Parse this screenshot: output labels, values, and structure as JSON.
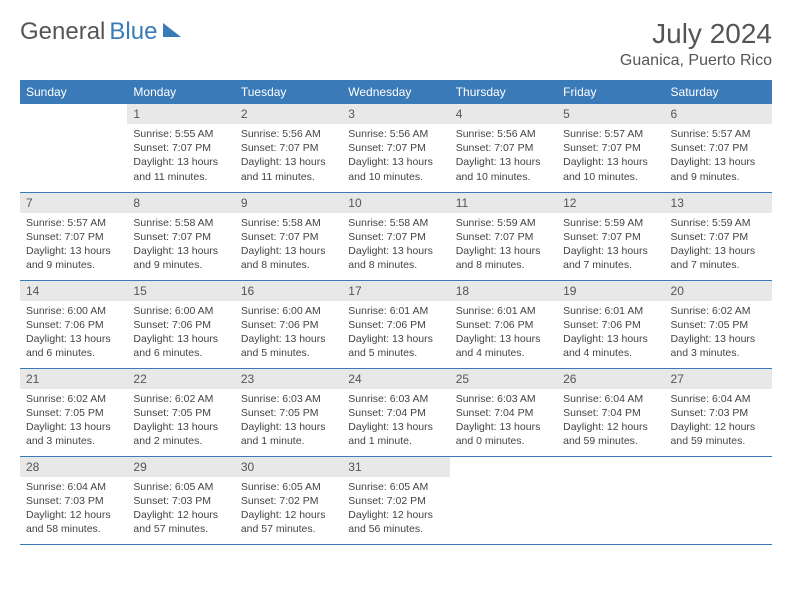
{
  "logo": {
    "part1": "General",
    "part2": "Blue"
  },
  "title": "July 2024",
  "location": "Guanica, Puerto Rico",
  "colors": {
    "header_bg": "#3a7ab8",
    "header_text": "#ffffff",
    "daynum_bg": "#e8e8e8",
    "text": "#444444",
    "border": "#3a7ab8"
  },
  "dayNames": [
    "Sunday",
    "Monday",
    "Tuesday",
    "Wednesday",
    "Thursday",
    "Friday",
    "Saturday"
  ],
  "weeks": [
    [
      null,
      {
        "n": "1",
        "sr": "5:55 AM",
        "ss": "7:07 PM",
        "dl": "13 hours and 11 minutes."
      },
      {
        "n": "2",
        "sr": "5:56 AM",
        "ss": "7:07 PM",
        "dl": "13 hours and 11 minutes."
      },
      {
        "n": "3",
        "sr": "5:56 AM",
        "ss": "7:07 PM",
        "dl": "13 hours and 10 minutes."
      },
      {
        "n": "4",
        "sr": "5:56 AM",
        "ss": "7:07 PM",
        "dl": "13 hours and 10 minutes."
      },
      {
        "n": "5",
        "sr": "5:57 AM",
        "ss": "7:07 PM",
        "dl": "13 hours and 10 minutes."
      },
      {
        "n": "6",
        "sr": "5:57 AM",
        "ss": "7:07 PM",
        "dl": "13 hours and 9 minutes."
      }
    ],
    [
      {
        "n": "7",
        "sr": "5:57 AM",
        "ss": "7:07 PM",
        "dl": "13 hours and 9 minutes."
      },
      {
        "n": "8",
        "sr": "5:58 AM",
        "ss": "7:07 PM",
        "dl": "13 hours and 9 minutes."
      },
      {
        "n": "9",
        "sr": "5:58 AM",
        "ss": "7:07 PM",
        "dl": "13 hours and 8 minutes."
      },
      {
        "n": "10",
        "sr": "5:58 AM",
        "ss": "7:07 PM",
        "dl": "13 hours and 8 minutes."
      },
      {
        "n": "11",
        "sr": "5:59 AM",
        "ss": "7:07 PM",
        "dl": "13 hours and 8 minutes."
      },
      {
        "n": "12",
        "sr": "5:59 AM",
        "ss": "7:07 PM",
        "dl": "13 hours and 7 minutes."
      },
      {
        "n": "13",
        "sr": "5:59 AM",
        "ss": "7:07 PM",
        "dl": "13 hours and 7 minutes."
      }
    ],
    [
      {
        "n": "14",
        "sr": "6:00 AM",
        "ss": "7:06 PM",
        "dl": "13 hours and 6 minutes."
      },
      {
        "n": "15",
        "sr": "6:00 AM",
        "ss": "7:06 PM",
        "dl": "13 hours and 6 minutes."
      },
      {
        "n": "16",
        "sr": "6:00 AM",
        "ss": "7:06 PM",
        "dl": "13 hours and 5 minutes."
      },
      {
        "n": "17",
        "sr": "6:01 AM",
        "ss": "7:06 PM",
        "dl": "13 hours and 5 minutes."
      },
      {
        "n": "18",
        "sr": "6:01 AM",
        "ss": "7:06 PM",
        "dl": "13 hours and 4 minutes."
      },
      {
        "n": "19",
        "sr": "6:01 AM",
        "ss": "7:06 PM",
        "dl": "13 hours and 4 minutes."
      },
      {
        "n": "20",
        "sr": "6:02 AM",
        "ss": "7:05 PM",
        "dl": "13 hours and 3 minutes."
      }
    ],
    [
      {
        "n": "21",
        "sr": "6:02 AM",
        "ss": "7:05 PM",
        "dl": "13 hours and 3 minutes."
      },
      {
        "n": "22",
        "sr": "6:02 AM",
        "ss": "7:05 PM",
        "dl": "13 hours and 2 minutes."
      },
      {
        "n": "23",
        "sr": "6:03 AM",
        "ss": "7:05 PM",
        "dl": "13 hours and 1 minute."
      },
      {
        "n": "24",
        "sr": "6:03 AM",
        "ss": "7:04 PM",
        "dl": "13 hours and 1 minute."
      },
      {
        "n": "25",
        "sr": "6:03 AM",
        "ss": "7:04 PM",
        "dl": "13 hours and 0 minutes."
      },
      {
        "n": "26",
        "sr": "6:04 AM",
        "ss": "7:04 PM",
        "dl": "12 hours and 59 minutes."
      },
      {
        "n": "27",
        "sr": "6:04 AM",
        "ss": "7:03 PM",
        "dl": "12 hours and 59 minutes."
      }
    ],
    [
      {
        "n": "28",
        "sr": "6:04 AM",
        "ss": "7:03 PM",
        "dl": "12 hours and 58 minutes."
      },
      {
        "n": "29",
        "sr": "6:05 AM",
        "ss": "7:03 PM",
        "dl": "12 hours and 57 minutes."
      },
      {
        "n": "30",
        "sr": "6:05 AM",
        "ss": "7:02 PM",
        "dl": "12 hours and 57 minutes."
      },
      {
        "n": "31",
        "sr": "6:05 AM",
        "ss": "7:02 PM",
        "dl": "12 hours and 56 minutes."
      },
      null,
      null,
      null
    ]
  ],
  "labels": {
    "sunrise": "Sunrise:",
    "sunset": "Sunset:",
    "daylight": "Daylight:"
  }
}
